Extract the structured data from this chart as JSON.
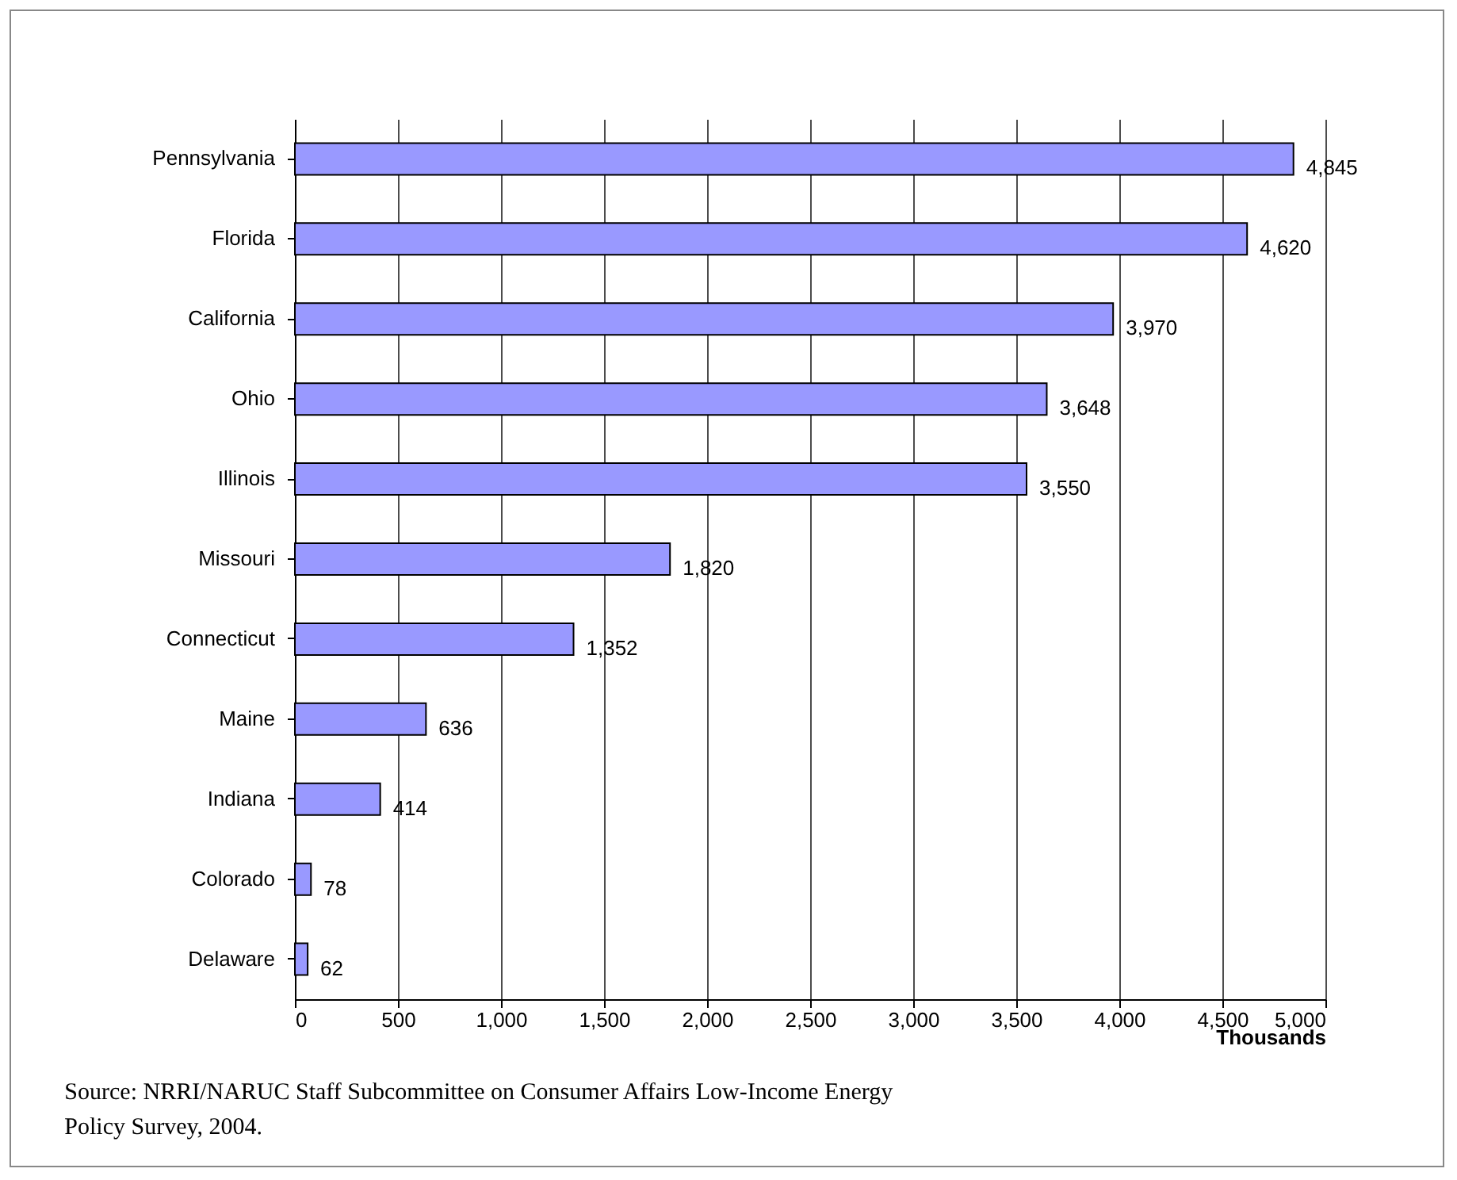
{
  "chart_data": {
    "type": "bar",
    "orientation": "horizontal",
    "xlabel": "Thousands",
    "categories": [
      "Pennsylvania",
      "Florida",
      "California",
      "Ohio",
      "Illinois",
      "Missouri",
      "Connecticut",
      "Maine",
      "Indiana",
      "Colorado",
      "Delaware"
    ],
    "values": [
      4845,
      4620,
      3970,
      3648,
      3550,
      1820,
      1352,
      636,
      414,
      78,
      62
    ],
    "value_labels": [
      "4,845",
      "4,620",
      "3,970",
      "3,648",
      "3,550",
      "1,820",
      "1,352",
      "636",
      "414",
      "78",
      "62"
    ],
    "color": "#9999ff",
    "xlim": [
      0,
      5000
    ],
    "xticks": [
      0,
      500,
      {
        "value": 1000,
        "label": "1,000"
      },
      {
        "value": 1500,
        "label": "1,500"
      },
      {
        "value": 2000,
        "label": "2,000"
      },
      {
        "value": 2500,
        "label": "2,500"
      },
      {
        "value": 3000,
        "label": "3,000"
      },
      {
        "value": 3500,
        "label": "3,500"
      },
      {
        "value": 4000,
        "label": "4,000"
      },
      {
        "value": 4500,
        "label": "4,500"
      },
      {
        "value": 5000,
        "label": "5,000"
      }
    ],
    "grid": "x",
    "annotations": [
      "Source: NRRI/NARUC Staff Subcommittee on Consumer Affairs Low-Income Energy Policy Survey,  2004."
    ]
  }
}
